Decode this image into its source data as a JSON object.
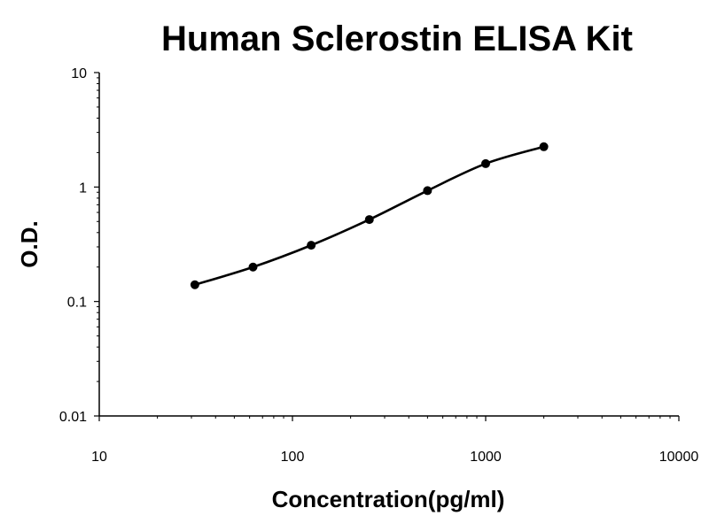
{
  "chart_data": {
    "type": "line",
    "title": "Human Sclerostin ELISA Kit",
    "xlabel": "Concentration(pg/ml)",
    "ylabel": "O.D.",
    "x_scale": "log",
    "y_scale": "log",
    "xlim": [
      10,
      10000
    ],
    "ylim": [
      0.01,
      10
    ],
    "x_ticks": [
      {
        "value": 10,
        "label": "10"
      },
      {
        "value": 100,
        "label": "100"
      },
      {
        "value": 1000,
        "label": "1000"
      },
      {
        "value": 10000,
        "label": "10000"
      }
    ],
    "y_ticks": [
      {
        "value": 0.01,
        "label": "0.01"
      },
      {
        "value": 0.1,
        "label": "0.1"
      },
      {
        "value": 1,
        "label": "1"
      },
      {
        "value": 10,
        "label": "10"
      }
    ],
    "grid": false,
    "legend": "none",
    "series": [
      {
        "color": "#000000",
        "marker": "circle",
        "x": [
          31.25,
          62.5,
          125,
          250,
          500,
          1000,
          2000
        ],
        "y": [
          0.14,
          0.2,
          0.31,
          0.52,
          0.93,
          1.6,
          2.25
        ]
      }
    ]
  }
}
